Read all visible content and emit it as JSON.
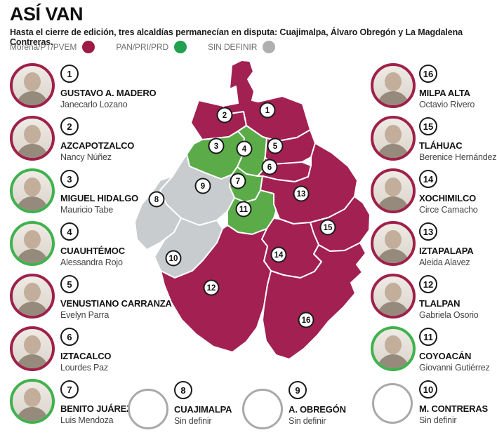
{
  "page": {
    "title": "ASÍ VAN",
    "subtitle": "Hasta el cierre de edición, tres alcaldías permanecían en disputa: Cuajimalpa, Álvaro Obregón y La Magdalena Contreras."
  },
  "legend": [
    {
      "label": "Morena/PT/PVEM",
      "party": "morena"
    },
    {
      "label": "PAN/PRI/PRD",
      "party": "pan"
    },
    {
      "label": "SIN DEFINIR",
      "party": "undef"
    }
  ],
  "party_colors": {
    "fill": {
      "morena": "#A22052",
      "pan": "#5BAC49",
      "undef": "#C9CCCF"
    },
    "ring": {
      "morena": "#9E2149",
      "pan": "#3FB24D",
      "undef": "#A9A9A9"
    },
    "dot": {
      "morena": "#9C1C46",
      "pan": "#21A04F",
      "undef": "#AFAFAF"
    }
  },
  "entries": [
    {
      "number": "1",
      "name": "GUSTAVO A. MADERO",
      "person": "Janecarlo Lozano",
      "party": "morena",
      "photo": true
    },
    {
      "number": "2",
      "name": "AZCAPOTZALCO",
      "person": "Nancy Núñez",
      "party": "morena",
      "photo": true
    },
    {
      "number": "3",
      "name": "MIGUEL HIDALGO",
      "person": "Mauricio Tabe",
      "party": "pan",
      "photo": true
    },
    {
      "number": "4",
      "name": "CUAUHTÉMOC",
      "person": "Alessandra Rojo",
      "party": "pan",
      "photo": true
    },
    {
      "number": "5",
      "name": "VENUSTIANO CARRANZA",
      "person": "Evelyn Parra",
      "party": "morena",
      "photo": true
    },
    {
      "number": "6",
      "name": "IZTACALCO",
      "person": "Lourdes Paz",
      "party": "morena",
      "photo": true
    },
    {
      "number": "7",
      "name": "BENITO JUÁREZ",
      "person": "Luis Mendoza",
      "party": "pan",
      "photo": true
    },
    {
      "number": "8",
      "name": "CUAJIMALPA",
      "person": "Sin definir",
      "party": "undef",
      "photo": false
    },
    {
      "number": "9",
      "name": "A. OBREGÓN",
      "person": "Sin definir",
      "party": "undef",
      "photo": false
    },
    {
      "number": "10",
      "name": "M. CONTRERAS",
      "person": "Sin definir",
      "party": "undef",
      "photo": false
    },
    {
      "number": "11",
      "name": "COYOACÁN",
      "person": "Giovanni Gutiérrez",
      "party": "pan",
      "photo": true
    },
    {
      "number": "12",
      "name": "TLALPAN",
      "person": "Gabriela Osorio",
      "party": "morena",
      "photo": true
    },
    {
      "number": "13",
      "name": "IZTAPALAPA",
      "person": "Aleida Alavez",
      "party": "morena",
      "photo": true
    },
    {
      "number": "14",
      "name": "XOCHIMILCO",
      "person": "Circe Camacho",
      "party": "morena",
      "photo": true
    },
    {
      "number": "15",
      "name": "TLÁHUAC",
      "person": "Berenice Hernández",
      "party": "morena",
      "photo": true
    },
    {
      "number": "16",
      "name": "MILPA ALTA",
      "person": "Octavio Rivero",
      "party": "morena",
      "photo": true
    }
  ],
  "layout": {
    "left": [
      "1",
      "2",
      "3",
      "4",
      "5",
      "6",
      "7"
    ],
    "right": [
      "16",
      "15",
      "14",
      "13",
      "12",
      "11",
      "10"
    ],
    "bottom_middle": [
      "8",
      "9"
    ]
  }
}
